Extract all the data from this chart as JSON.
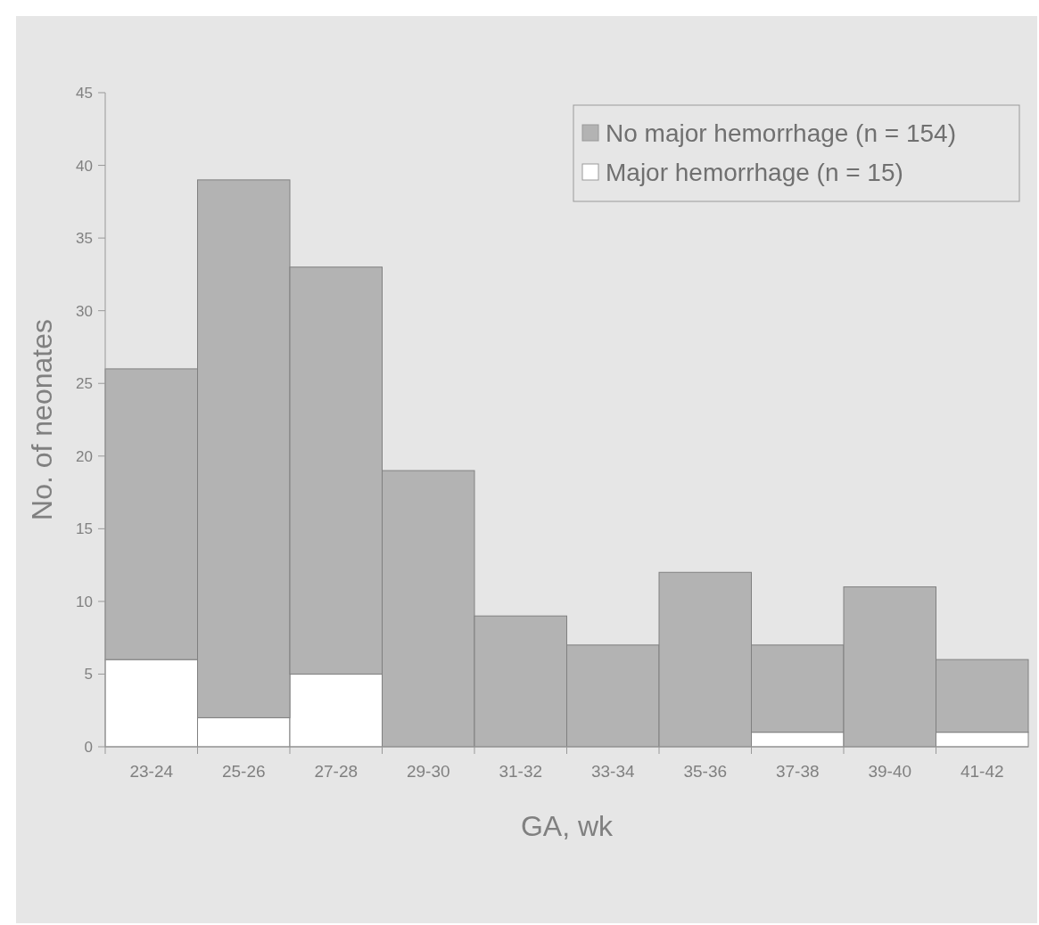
{
  "chart_data": {
    "type": "bar",
    "stacked": true,
    "xlabel": "GA, wk",
    "ylabel": "No. of neonates",
    "categories": [
      "23-24",
      "25-26",
      "27-28",
      "29-30",
      "31-32",
      "33-34",
      "35-36",
      "37-38",
      "39-40",
      "41-42"
    ],
    "series": [
      {
        "name": "Major hemorrhage (n = 15)",
        "color": "#ffffff",
        "values": [
          6,
          2,
          5,
          0,
          0,
          0,
          0,
          1,
          0,
          1
        ]
      },
      {
        "name": "No major hemorrhage (n = 154)",
        "color": "#b3b3b3",
        "values": [
          20,
          37,
          28,
          19,
          9,
          7,
          12,
          6,
          11,
          5
        ]
      }
    ],
    "ylim": [
      0,
      45
    ],
    "yticks": [
      0,
      5,
      10,
      15,
      20,
      25,
      30,
      35,
      40,
      45
    ],
    "legend": "top right",
    "grid": false
  }
}
